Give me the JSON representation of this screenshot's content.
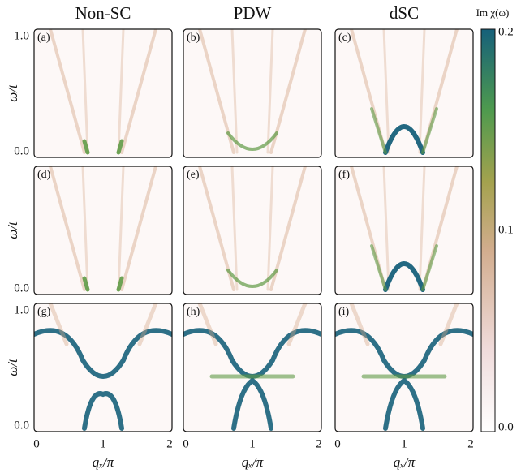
{
  "columns": [
    "Non-SC",
    "PDW",
    "dSC"
  ],
  "panels": [
    "(a)",
    "(b)",
    "(c)",
    "(d)",
    "(e)",
    "(f)",
    "(g)",
    "(h)",
    "(i)"
  ],
  "y_label": "ω/t",
  "x_label": "qₓ/π",
  "y_tick_top": "1.0",
  "y_tick_bottom": "0.0",
  "x_ticks": [
    "0",
    "1",
    "2"
  ],
  "colorbar": {
    "label": "Im χ(ω)",
    "ticks": [
      "0.2",
      "0.1",
      "0.0"
    ]
  }
}
